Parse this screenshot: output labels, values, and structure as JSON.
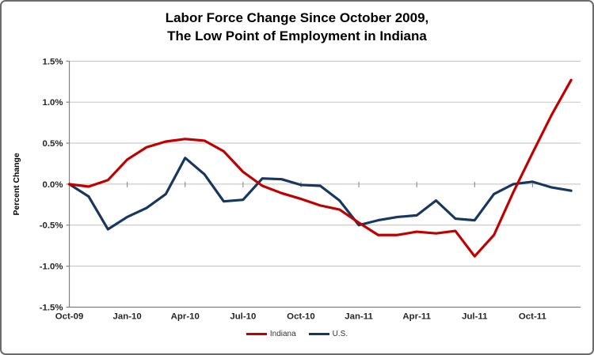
{
  "chart_data": {
    "type": "line",
    "title_line1": "Labor Force Change Since October 2009,",
    "title_line2": "The Low Point of Employment in Indiana",
    "ylabel": "Percent Change",
    "categories": [
      "Oct-09",
      "Nov-09",
      "Dec-09",
      "Jan-10",
      "Feb-10",
      "Mar-10",
      "Apr-10",
      "May-10",
      "Jun-10",
      "Jul-10",
      "Aug-10",
      "Sep-10",
      "Oct-10",
      "Nov-10",
      "Dec-10",
      "Jan-11",
      "Feb-11",
      "Mar-11",
      "Apr-11",
      "May-11",
      "Jun-11",
      "Jul-11",
      "Aug-11",
      "Sep-11",
      "Oct-11",
      "Nov-11",
      "Dec-11"
    ],
    "x_axis_labels": [
      "Oct-09",
      "Jan-10",
      "Apr-10",
      "Jul-10",
      "Oct-10",
      "Jan-11",
      "Apr-11",
      "Jul-11",
      "Oct-11"
    ],
    "x_label_every": 3,
    "series": [
      {
        "name": "Indiana",
        "color": "#c00000",
        "values": [
          0.0,
          -0.03,
          0.05,
          0.3,
          0.45,
          0.52,
          0.55,
          0.53,
          0.4,
          0.15,
          -0.02,
          -0.11,
          -0.18,
          -0.26,
          -0.31,
          -0.47,
          -0.62,
          -0.62,
          -0.58,
          -0.6,
          -0.57,
          -0.88,
          -0.62,
          -0.1,
          0.38,
          0.85,
          1.27
        ]
      },
      {
        "name": "U.S.",
        "color": "#17375e",
        "values": [
          0.0,
          -0.15,
          -0.55,
          -0.4,
          -0.29,
          -0.12,
          0.32,
          0.12,
          -0.21,
          -0.19,
          0.07,
          0.06,
          -0.01,
          -0.02,
          -0.2,
          -0.5,
          -0.44,
          -0.4,
          -0.38,
          -0.2,
          -0.42,
          -0.44,
          -0.12,
          0.0,
          0.03,
          -0.04,
          -0.08
        ]
      }
    ],
    "ylim": [
      -1.5,
      1.5
    ],
    "yticks": [
      {
        "label": "1.5%",
        "value": 1.5
      },
      {
        "label": "1.0%",
        "value": 1.0
      },
      {
        "label": "0.5%",
        "value": 0.5
      },
      {
        "label": "0.0%",
        "value": 0.0
      },
      {
        "label": "-0.5%",
        "value": -0.5
      },
      {
        "label": "-1.0%",
        "value": -1.0
      },
      {
        "label": "-1.5%",
        "value": -1.5
      }
    ],
    "grid": true,
    "legend_position": "bottom",
    "colors": {
      "gridline": "#bfbfbf",
      "axis": "#808080",
      "tick_label": "#262626",
      "title": "#000000"
    }
  }
}
